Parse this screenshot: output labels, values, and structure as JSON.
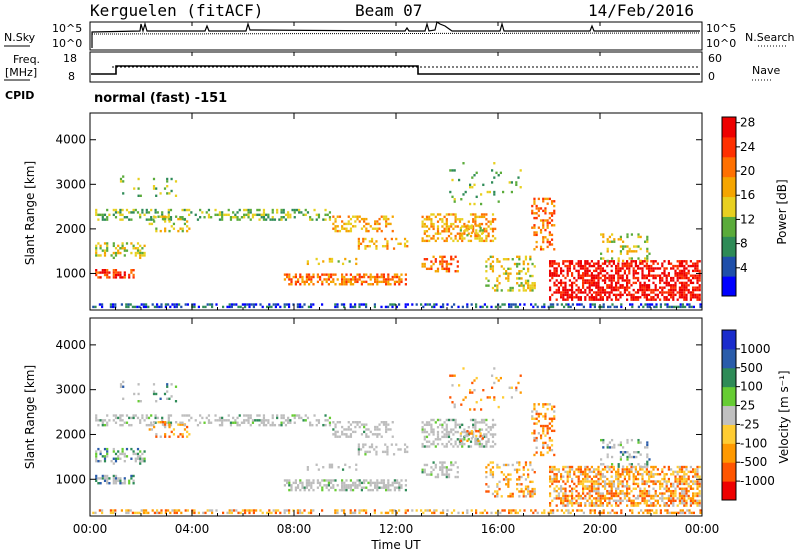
{
  "header": {
    "station": "Kerguelen (fitACF)",
    "beam": "Beam 07",
    "date": "14/Feb/2016"
  },
  "strip_labels": {
    "nsky": "N.Sky",
    "nsearch": "N.Search",
    "freq_line1": "Freq.",
    "freq_line2": "[MHz]",
    "nave": "Nave",
    "cpid": "CPID",
    "cpid_value": "normal (fast) -151"
  },
  "noise_ticks_left": [
    "10^5",
    "10^0"
  ],
  "noise_ticks_right": [
    "10^5",
    "10^0"
  ],
  "freq_ticks": [
    "18",
    "8"
  ],
  "nave_ticks": [
    "60",
    "0"
  ],
  "colors": {
    "power_scale": [
      "#0000ff",
      "#1f4faa",
      "#2e8b57",
      "#5aab3a",
      "#e8d020",
      "#f5a500",
      "#ff7000",
      "#ff3000",
      "#ee0000"
    ],
    "velocity_scale": [
      "#ee0000",
      "#ff5500",
      "#ff9900",
      "#ffcc33",
      "#c0c0c0",
      "#66cc33",
      "#2e8b57",
      "#2a5caa",
      "#1a2ccc"
    ],
    "ground_scatter": "#bdbdbd"
  },
  "chart_data": [
    {
      "type": "heatmap",
      "panel": "power",
      "ylabel": "Slant Range [km]",
      "yticks": [
        "1000",
        "2000",
        "3000",
        "4000"
      ],
      "ylim": [
        180,
        4600
      ],
      "xlim": [
        0,
        24
      ],
      "xticks": [
        "00:00",
        "04:00",
        "08:00",
        "12:00",
        "16:00",
        "20:00",
        "00:00"
      ],
      "colorbar_label": "Power [dB]",
      "colorbar_ticks": [
        "4",
        "8",
        "12",
        "16",
        "20",
        "24",
        "28"
      ],
      "colorbar_range": [
        0,
        30
      ]
    },
    {
      "type": "heatmap",
      "panel": "velocity",
      "ylabel": "Slant Range [km]",
      "yticks": [
        "1000",
        "2000",
        "3000",
        "4000"
      ],
      "ylim": [
        180,
        4600
      ],
      "xlim": [
        0,
        24
      ],
      "xticks": [
        "00:00",
        "04:00",
        "08:00",
        "12:00",
        "16:00",
        "20:00",
        "00:00"
      ],
      "xlabel": "Time UT",
      "colorbar_label": "Velocity [m s⁻¹]",
      "colorbar_ticks": [
        "1000",
        "500",
        "100",
        "25",
        "-25",
        "-100",
        "-500",
        "-1000"
      ]
    }
  ]
}
